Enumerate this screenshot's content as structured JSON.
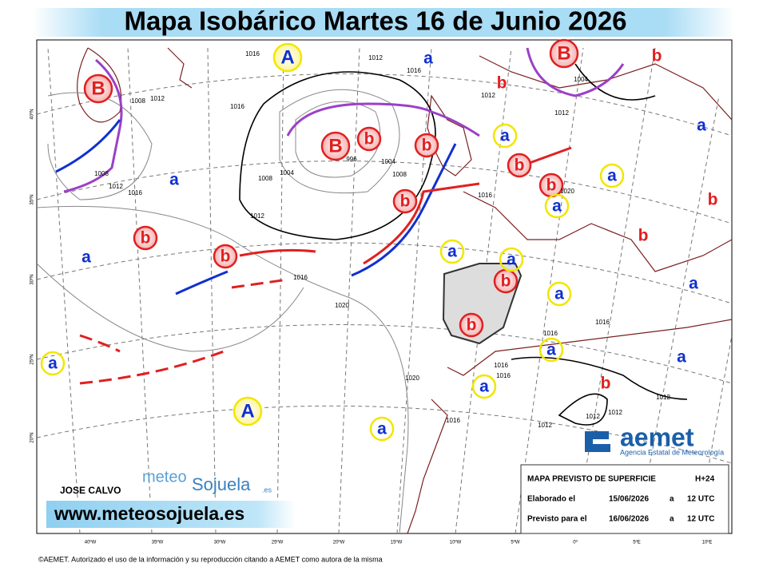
{
  "header": {
    "title": "Mapa Isobárico Martes 16 de Junio 2026"
  },
  "map": {
    "centers": [
      "B",
      "B",
      "B",
      "b",
      "b",
      "b",
      "b",
      "b",
      "b",
      "b",
      "b",
      "b",
      "b",
      "b",
      "b",
      "b",
      "b",
      "A",
      "A",
      "a",
      "a",
      "a",
      "a",
      "a",
      "a",
      "a",
      "a",
      "a",
      "a",
      "a",
      "a",
      "a",
      "a",
      "a",
      "a"
    ],
    "isobar_labels": [
      "1012",
      "1012",
      "1012",
      "1012",
      "1012",
      "1012",
      "1012",
      "1012",
      "1012",
      "1012",
      "1016",
      "1016",
      "1016",
      "1016",
      "1016",
      "1016",
      "1016",
      "1016",
      "1016",
      "1016",
      "1016",
      "1008",
      "1008",
      "1008",
      "1008",
      "1004",
      "1004",
      "1004",
      "996",
      "1020",
      "1020",
      "1020"
    ],
    "lon_labels": [
      "40ºW",
      "35ºW",
      "30ºW",
      "25ºW",
      "20ºW",
      "15ºW",
      "10ºW",
      "5ºW",
      "0º",
      "5ºE",
      "10ºE"
    ],
    "lat_labels": [
      "40ºN",
      "35ºN",
      "30ºN",
      "25ºN",
      "20ºN"
    ]
  },
  "logo": {
    "name": "aemet",
    "subtitle": "Agencia Estatal de Meteorología"
  },
  "info_box": {
    "rows": [
      [
        "MAPA PREVISTO DE SUPERFICIE",
        "H+24"
      ],
      [
        "Elaborado el",
        "15/06/2026",
        "a",
        "12 UTC"
      ],
      [
        "Previsto para el",
        "16/06/2026",
        "a",
        "12 UTC"
      ]
    ]
  },
  "credits": {
    "author": "JOSE CALVO",
    "brand_a": "meteo",
    "brand_b": "Sojuela",
    "brand_c": ".es",
    "url": "www.meteosojuela.es"
  },
  "footer": "©AEMET. Autorizado el uso de la información y su reproducción citando a AEMET como autora de la misma"
}
